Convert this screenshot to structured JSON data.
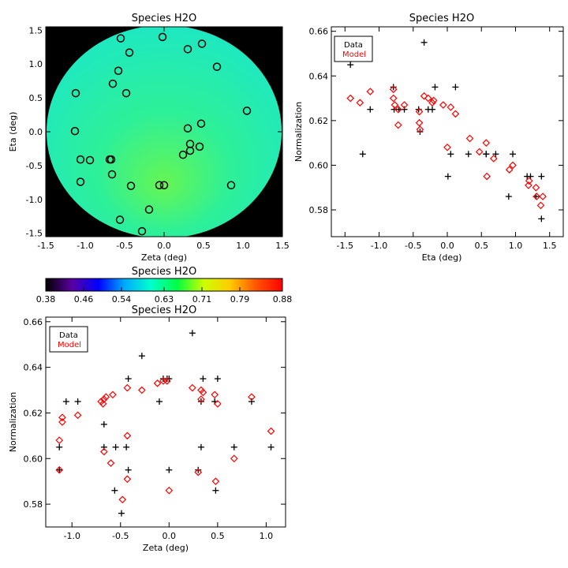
{
  "chart_data": [
    {
      "type": "heatmap",
      "title": "Species H2O",
      "xlabel": "Zeta (deg)",
      "ylabel": "Eta (deg)",
      "xlim": [
        -1.5,
        1.5
      ],
      "ylim": [
        -1.55,
        1.55
      ],
      "xticks": [
        "-1.5",
        "-1.0",
        "-0.5",
        "0.0",
        "0.5",
        "1.0",
        "1.5"
      ],
      "yticks": [
        "-1.5",
        "-1.0",
        "-0.5",
        "0.0",
        "0.5",
        "1.0",
        "1.5"
      ],
      "background_color": "#000000",
      "field": {
        "center_value": 0.655,
        "gradient": "radial, lower values toward bottom-center (0.60), higher toward upper edge (0.64)"
      },
      "markers": {
        "shape": "circle",
        "points": [
          [
            -0.55,
            1.38
          ],
          [
            -0.02,
            1.4
          ],
          [
            -0.44,
            1.17
          ],
          [
            0.3,
            1.22
          ],
          [
            0.48,
            1.3
          ],
          [
            0.67,
            0.96
          ],
          [
            -0.58,
            0.9
          ],
          [
            -0.65,
            0.71
          ],
          [
            -0.48,
            0.57
          ],
          [
            -1.12,
            0.57
          ],
          [
            -1.13,
            0.01
          ],
          [
            0.3,
            0.05
          ],
          [
            0.47,
            0.12
          ],
          [
            1.05,
            0.31
          ],
          [
            -1.06,
            -0.41
          ],
          [
            -0.94,
            -0.42
          ],
          [
            -0.67,
            -0.41
          ],
          [
            -0.69,
            -0.41
          ],
          [
            0.33,
            -0.18
          ],
          [
            0.33,
            -0.28
          ],
          [
            0.45,
            -0.22
          ],
          [
            0.24,
            -0.34
          ],
          [
            -1.06,
            -0.74
          ],
          [
            -0.66,
            -0.63
          ],
          [
            -0.42,
            -0.8
          ],
          [
            -0.06,
            -0.79
          ],
          [
            0.0,
            -0.79
          ],
          [
            0.85,
            -0.79
          ],
          [
            -0.19,
            -1.15
          ],
          [
            -0.56,
            -1.3
          ],
          [
            -0.28,
            -1.47
          ]
        ]
      }
    },
    {
      "type": "scatter",
      "title": "Species H2O",
      "xlabel": "Eta (deg)",
      "ylabel": "Normalization",
      "xlim": [
        -1.7,
        1.7
      ],
      "ylim": [
        0.568,
        0.662
      ],
      "xticks": [
        "-1.5",
        "-1.0",
        "-0.5",
        "0.0",
        "0.5",
        "1.0",
        "1.5"
      ],
      "yticks": [
        "0.58",
        "0.60",
        "0.62",
        "0.64",
        "0.66"
      ],
      "legend": {
        "placement": "top-left",
        "entries": [
          {
            "label": "Data",
            "color": "#000000"
          },
          {
            "label": "Model",
            "color": "#ff0000"
          }
        ]
      },
      "series": [
        {
          "name": "Data",
          "marker": "plus",
          "color": "#000000",
          "points": [
            [
              -1.42,
              0.645
            ],
            [
              -1.13,
              0.625
            ],
            [
              -1.24,
              0.605
            ],
            [
              -0.79,
              0.635
            ],
            [
              -0.78,
              0.625
            ],
            [
              -0.71,
              0.625
            ],
            [
              -0.63,
              0.625
            ],
            [
              -0.42,
              0.625
            ],
            [
              -0.4,
              0.615
            ],
            [
              -0.34,
              0.655
            ],
            [
              -0.28,
              0.625
            ],
            [
              -0.22,
              0.625
            ],
            [
              -0.18,
              0.635
            ],
            [
              0.05,
              0.605
            ],
            [
              0.01,
              0.595
            ],
            [
              0.12,
              0.635
            ],
            [
              0.31,
              0.605
            ],
            [
              0.57,
              0.605
            ],
            [
              0.57,
              0.605
            ],
            [
              0.71,
              0.605
            ],
            [
              0.9,
              0.586
            ],
            [
              0.96,
              0.605
            ],
            [
              1.17,
              0.595
            ],
            [
              1.22,
              0.595
            ],
            [
              1.3,
              0.586
            ],
            [
              1.38,
              0.595
            ],
            [
              1.38,
              0.576
            ]
          ]
        },
        {
          "name": "Model",
          "marker": "diamond",
          "color": "#ff0000",
          "points": [
            [
              -1.42,
              0.63
            ],
            [
              -1.28,
              0.628
            ],
            [
              -1.13,
              0.633
            ],
            [
              -0.79,
              0.634
            ],
            [
              -0.79,
              0.63
            ],
            [
              -0.77,
              0.627
            ],
            [
              -0.72,
              0.618
            ],
            [
              -0.72,
              0.625
            ],
            [
              -0.63,
              0.627
            ],
            [
              -0.41,
              0.624
            ],
            [
              -0.41,
              0.619
            ],
            [
              -0.4,
              0.616
            ],
            [
              -0.34,
              0.631
            ],
            [
              -0.28,
              0.63
            ],
            [
              -0.2,
              0.629
            ],
            [
              -0.22,
              0.628
            ],
            [
              -0.06,
              0.627
            ],
            [
              0.0,
              0.608
            ],
            [
              0.05,
              0.626
            ],
            [
              0.12,
              0.623
            ],
            [
              0.33,
              0.612
            ],
            [
              0.47,
              0.606
            ],
            [
              0.57,
              0.61
            ],
            [
              0.58,
              0.595
            ],
            [
              0.68,
              0.603
            ],
            [
              0.91,
              0.598
            ],
            [
              0.96,
              0.6
            ],
            [
              1.19,
              0.591
            ],
            [
              1.2,
              0.593
            ],
            [
              1.3,
              0.59
            ],
            [
              1.31,
              0.586
            ],
            [
              1.37,
              0.582
            ],
            [
              1.4,
              0.586
            ]
          ]
        }
      ]
    },
    {
      "type": "heatmap",
      "title": "Species H2O",
      "role": "colorbar",
      "colormap": [
        "#000000",
        "#5a00a0",
        "#0000ff",
        "#00aaff",
        "#00ffcc",
        "#00ff44",
        "#ccff00",
        "#ffcc00",
        "#ff5500",
        "#ff0000"
      ],
      "range": [
        0.38,
        0.88
      ],
      "tick_labels": [
        "0.38",
        "0.46",
        "0.54",
        "0.63",
        "0.71",
        "0.79",
        "0.88"
      ]
    },
    {
      "type": "scatter",
      "title": "Species H2O",
      "xlabel": "Zeta (deg)",
      "ylabel": "Normalization",
      "xlim": [
        -1.27,
        1.2
      ],
      "ylim": [
        0.57,
        0.662
      ],
      "xticks": [
        "-1.0",
        "-0.5",
        "0.0",
        "0.5",
        "1.0"
      ],
      "yticks": [
        "0.58",
        "0.60",
        "0.62",
        "0.64",
        "0.66"
      ],
      "legend": {
        "placement": "top-left",
        "entries": [
          {
            "label": "Data",
            "color": "#000000"
          },
          {
            "label": "Model",
            "color": "#ff0000"
          }
        ]
      },
      "series": [
        {
          "name": "Data",
          "marker": "plus",
          "color": "#000000",
          "points": [
            [
              -1.13,
              0.605
            ],
            [
              -1.13,
              0.595
            ],
            [
              -1.06,
              0.625
            ],
            [
              -0.94,
              0.625
            ],
            [
              -0.67,
              0.615
            ],
            [
              -0.67,
              0.605
            ],
            [
              -0.56,
              0.586
            ],
            [
              -0.55,
              0.605
            ],
            [
              -0.49,
              0.576
            ],
            [
              -0.44,
              0.605
            ],
            [
              -0.42,
              0.635
            ],
            [
              -0.42,
              0.595
            ],
            [
              -0.28,
              0.645
            ],
            [
              -0.06,
              0.635
            ],
            [
              -0.02,
              0.635
            ],
            [
              0.0,
              0.595
            ],
            [
              0.0,
              0.635
            ],
            [
              -0.1,
              0.625
            ],
            [
              0.24,
              0.655
            ],
            [
              0.3,
              0.595
            ],
            [
              0.33,
              0.625
            ],
            [
              0.33,
              0.605
            ],
            [
              0.35,
              0.635
            ],
            [
              0.47,
              0.625
            ],
            [
              0.48,
              0.586
            ],
            [
              0.5,
              0.635
            ],
            [
              0.67,
              0.605
            ],
            [
              0.85,
              0.625
            ],
            [
              1.05,
              0.605
            ]
          ]
        },
        {
          "name": "Model",
          "marker": "diamond",
          "color": "#ff0000",
          "points": [
            [
              -1.13,
              0.608
            ],
            [
              -1.13,
              0.595
            ],
            [
              -1.1,
              0.618
            ],
            [
              -1.1,
              0.616
            ],
            [
              -0.94,
              0.619
            ],
            [
              -0.7,
              0.625
            ],
            [
              -0.68,
              0.624
            ],
            [
              -0.67,
              0.626
            ],
            [
              -0.67,
              0.603
            ],
            [
              -0.65,
              0.627
            ],
            [
              -0.6,
              0.598
            ],
            [
              -0.58,
              0.628
            ],
            [
              -0.48,
              0.582
            ],
            [
              -0.43,
              0.61
            ],
            [
              -0.43,
              0.631
            ],
            [
              -0.43,
              0.591
            ],
            [
              -0.28,
              0.63
            ],
            [
              -0.12,
              0.633
            ],
            [
              -0.06,
              0.634
            ],
            [
              -0.02,
              0.634
            ],
            [
              0.0,
              0.586
            ],
            [
              0.24,
              0.631
            ],
            [
              0.3,
              0.594
            ],
            [
              0.33,
              0.626
            ],
            [
              0.33,
              0.63
            ],
            [
              0.35,
              0.629
            ],
            [
              0.47,
              0.628
            ],
            [
              0.48,
              0.59
            ],
            [
              0.5,
              0.624
            ],
            [
              0.67,
              0.6
            ],
            [
              0.85,
              0.627
            ],
            [
              1.05,
              0.612
            ]
          ]
        }
      ]
    }
  ]
}
